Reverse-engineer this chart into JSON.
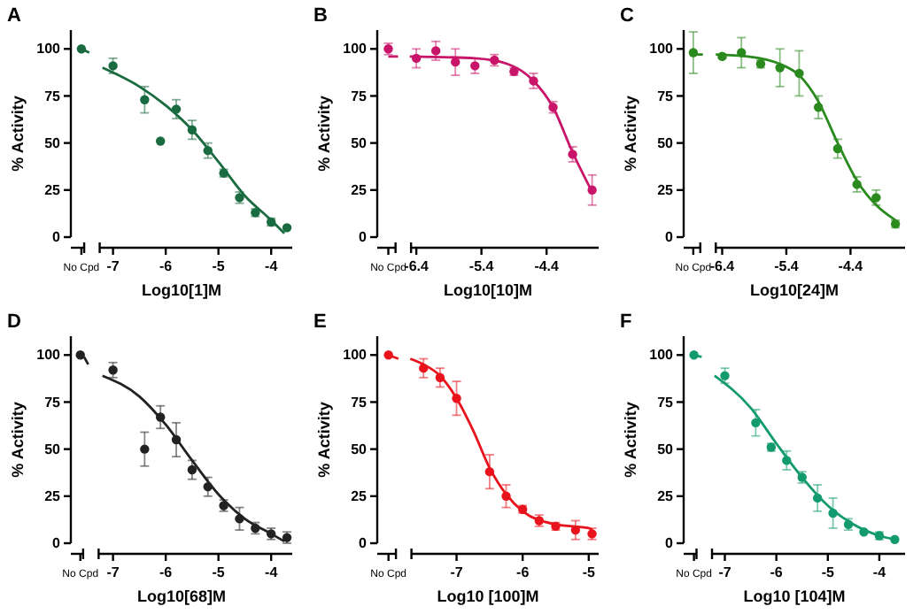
{
  "chart_data": [
    {
      "type": "scatter",
      "title": "A",
      "xlabel": "Log10[1]M",
      "ylabel": "% Activity",
      "xlim": [
        -7.8,
        -3.6
      ],
      "ylim": [
        0,
        110
      ],
      "yticks": [
        0,
        25,
        50,
        75,
        100
      ],
      "xticks": [
        {
          "value": -7.6,
          "label": "No Cpd"
        },
        -7,
        -6,
        -5,
        -4
      ],
      "series": [
        {
          "marker": "circle",
          "color": "#1b6b40",
          "x": [
            -7.6,
            -7,
            -6.4,
            -6.1,
            -5.8,
            -5.5,
            -5.2,
            -4.9,
            -4.6,
            -4.3,
            -4,
            -3.7
          ],
          "values": [
            100,
            91,
            73,
            51,
            68,
            57,
            46,
            34,
            21,
            13,
            8,
            5
          ],
          "errors": [
            null,
            4,
            7,
            null,
            5,
            5,
            4,
            2,
            3,
            2,
            2,
            null
          ]
        },
        {
          "type": "line",
          "marker": "none",
          "color": "#1b6b40",
          "x": [
            -7.6,
            -7.45,
            -7.4,
            -7.2,
            -6.5,
            -6,
            -5.5,
            -5,
            -4.5,
            -4,
            -3.75
          ],
          "values": [
            100,
            98,
            null,
            90,
            80,
            70,
            57,
            40,
            22,
            9,
            2
          ]
        }
      ]
    },
    {
      "type": "scatter",
      "title": "B",
      "xlabel": "Log10[10]M",
      "ylabel": "% Activity",
      "xlim": [
        -7.0,
        -3.6
      ],
      "ylim": [
        0,
        110
      ],
      "yticks": [
        0,
        25,
        50,
        75,
        100
      ],
      "xticks": [
        {
          "value": -6.83,
          "label": "No Cpd"
        },
        -6.4,
        -5.4,
        -4.4
      ],
      "series": [
        {
          "marker": "circle",
          "color": "#c8156a",
          "x": [
            -6.83,
            -6.4,
            -6.1,
            -5.8,
            -5.5,
            -5.2,
            -4.9,
            -4.6,
            -4.3,
            -4.0,
            -3.7
          ],
          "values": [
            100,
            95,
            99,
            93,
            91,
            94,
            88,
            83,
            69,
            44,
            25
          ],
          "errors": [
            3,
            5,
            5,
            7,
            4,
            3,
            2,
            4,
            3,
            4,
            8
          ]
        },
        {
          "type": "line",
          "marker": "none",
          "color": "#c8156a",
          "x": [
            -6.83,
            -6.68,
            -6.6,
            -6.5,
            -5.5,
            -5.0,
            -4.6,
            -4.3,
            -4.0,
            -3.7
          ],
          "values": [
            96,
            96,
            null,
            96,
            95,
            92,
            83,
            69,
            45,
            24
          ]
        }
      ]
    },
    {
      "type": "scatter",
      "title": "C",
      "xlabel": "Log10[24]M",
      "ylabel": "% Activity",
      "xlim": [
        -7.0,
        -3.55
      ],
      "ylim": [
        0,
        110
      ],
      "yticks": [
        0,
        25,
        50,
        75,
        100
      ],
      "xticks": [
        {
          "value": -6.85,
          "label": "No Cpd"
        },
        -6.4,
        -5.4,
        -4.4
      ],
      "series": [
        {
          "marker": "circle",
          "color": "#2a8a1e",
          "x": [
            -6.85,
            -6.4,
            -6.1,
            -5.8,
            -5.5,
            -5.2,
            -4.9,
            -4.6,
            -4.3,
            -4.0,
            -3.7
          ],
          "values": [
            98,
            96,
            98,
            92,
            90,
            87,
            69,
            47,
            28,
            21,
            7
          ],
          "errors": [
            11,
            1,
            8,
            2,
            10,
            12,
            6,
            5,
            4,
            4,
            2
          ]
        },
        {
          "type": "line",
          "marker": "none",
          "color": "#2a8a1e",
          "x": [
            -6.85,
            -6.7,
            -6.62,
            -6.5,
            -6,
            -5.5,
            -5.2,
            -4.9,
            -4.6,
            -4.3,
            -4.0,
            -3.7
          ],
          "values": [
            97,
            97,
            null,
            97,
            96,
            92,
            86,
            72,
            50,
            30,
            17,
            9
          ]
        }
      ]
    },
    {
      "type": "scatter",
      "title": "D",
      "xlabel": "Log10[68]M",
      "ylabel": "% Activity",
      "xlim": [
        -7.8,
        -3.6
      ],
      "ylim": [
        0,
        110
      ],
      "yticks": [
        0,
        25,
        50,
        75,
        100
      ],
      "xticks": [
        {
          "value": -7.62,
          "label": "No Cpd"
        },
        -7,
        -6,
        -5,
        -4
      ],
      "series": [
        {
          "marker": "circle",
          "color": "#222222",
          "x": [
            -7.62,
            -7,
            -6.4,
            -6.1,
            -5.8,
            -5.5,
            -5.2,
            -4.9,
            -4.6,
            -4.3,
            -4,
            -3.7
          ],
          "values": [
            100,
            92,
            50,
            67,
            55,
            39,
            30,
            20,
            13,
            8,
            5,
            3
          ],
          "errors": [
            null,
            4,
            9,
            6,
            9,
            5,
            5,
            3,
            6,
            3,
            3,
            3
          ]
        },
        {
          "type": "line",
          "marker": "none",
          "color": "#222222",
          "x": [
            -7.55,
            -7.47,
            -7.42,
            -7.2,
            -6.5,
            -6,
            -5.5,
            -5,
            -4.5,
            -4,
            -3.75
          ],
          "values": [
            99,
            95,
            null,
            89,
            78,
            63,
            44,
            26,
            13,
            5,
            1
          ]
        }
      ]
    },
    {
      "type": "scatter",
      "title": "E",
      "xlabel": "Log10 [100]M",
      "ylabel": "% Activity",
      "xlim": [
        -8.2,
        -4.85
      ],
      "ylim": [
        0,
        110
      ],
      "yticks": [
        0,
        25,
        50,
        75,
        100
      ],
      "xticks": [
        {
          "value": -8.03,
          "label": "No Cpd"
        },
        -7,
        -6,
        -5
      ],
      "series": [
        {
          "marker": "circle",
          "color": "#e8131c",
          "x": [
            -8.03,
            -7.5,
            -7.25,
            -7,
            -6.5,
            -6.25,
            -6,
            -5.75,
            -5.5,
            -5.2,
            -4.95
          ],
          "values": [
            100,
            93,
            88,
            77,
            38,
            25,
            18,
            12,
            9,
            7,
            5
          ],
          "errors": [
            null,
            5,
            5,
            9,
            9,
            6,
            2,
            3,
            2,
            5,
            3
          ]
        },
        {
          "type": "line",
          "marker": "none",
          "color": "#e8131c",
          "x": [
            -8.03,
            -7.88,
            -7.8,
            -7.7,
            -7.5,
            -7.25,
            -7,
            -6.75,
            -6.5,
            -6.25,
            -6,
            -5.5,
            -5,
            -4.95
          ],
          "values": [
            100,
            98,
            null,
            98,
            95,
            89,
            77,
            60,
            40,
            26,
            17,
            10,
            8,
            7
          ]
        }
      ]
    },
    {
      "type": "scatter",
      "title": "F",
      "xlabel": "Log10 [104]M",
      "ylabel": "% Activity",
      "xlim": [
        -7.8,
        -3.5
      ],
      "ylim": [
        0,
        110
      ],
      "yticks": [
        0,
        25,
        50,
        75,
        100
      ],
      "xticks": [
        {
          "value": -7.6,
          "label": "No Cpd"
        },
        -7,
        -6,
        -5,
        -4
      ],
      "series": [
        {
          "marker": "circle",
          "color": "#139a6e",
          "x": [
            -7.6,
            -7,
            -6.4,
            -6.1,
            -5.8,
            -5.5,
            -5.2,
            -4.9,
            -4.6,
            -4.3,
            -4,
            -3.7
          ],
          "values": [
            100,
            89,
            64,
            51,
            44,
            35,
            24,
            16,
            10,
            6,
            4,
            2
          ],
          "errors": [
            null,
            4,
            7,
            2,
            5,
            3,
            7,
            8,
            3,
            null,
            2,
            null
          ]
        },
        {
          "type": "line",
          "marker": "none",
          "color": "#139a6e",
          "x": [
            -7.6,
            -7.45,
            -7.4,
            -7.2,
            -6.5,
            -6,
            -5.5,
            -5,
            -4.5,
            -4,
            -3.7
          ],
          "values": [
            100,
            99,
            null,
            89,
            72,
            53,
            35,
            20,
            10,
            4,
            2
          ]
        }
      ]
    }
  ]
}
